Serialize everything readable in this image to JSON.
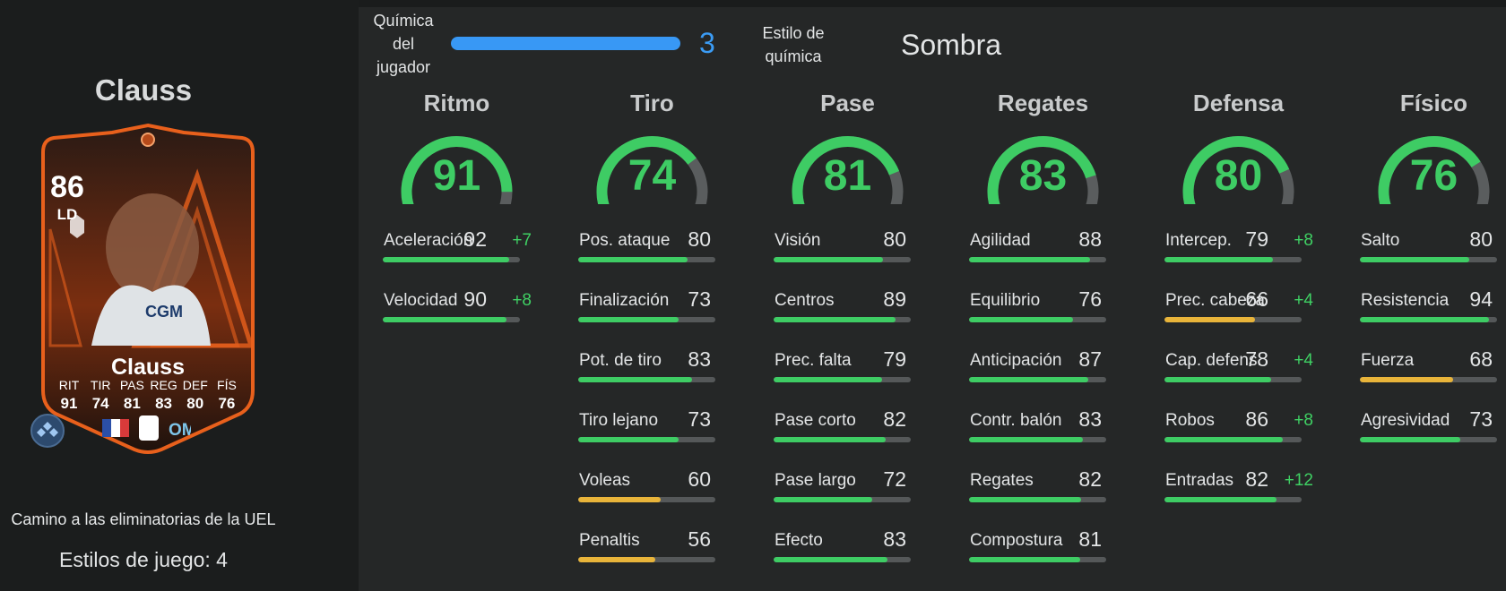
{
  "colors": {
    "bar_green": "#3ecc64",
    "bar_yellow": "#e8b43a",
    "bonus_green": "#3fd063",
    "chemistry_blue": "#3898f5",
    "card_orange": "#e8601c"
  },
  "player": {
    "name": "Clauss",
    "card": {
      "rating": "86",
      "position": "LD",
      "name": "Clauss",
      "stats": [
        {
          "label": "RIT",
          "value": "91"
        },
        {
          "label": "TIR",
          "value": "74"
        },
        {
          "label": "PAS",
          "value": "81"
        },
        {
          "label": "REG",
          "value": "83"
        },
        {
          "label": "DEF",
          "value": "80"
        },
        {
          "label": "FÍS",
          "value": "76"
        }
      ],
      "badges": {
        "playstyle": "playstyle-icon",
        "nation": "france-flag-icon",
        "league": "ligue1-logo-icon",
        "club": "marseille-crest-icon"
      }
    },
    "promo": "Camino a las eliminatorias de la UEL",
    "playstyles": "Estilos de juego: 4"
  },
  "chemistry": {
    "label_lines": [
      "Química",
      "del",
      "jugador"
    ],
    "value": "3",
    "fill": 1.0,
    "style_label_lines": [
      "Estilo de",
      "química"
    ],
    "style_value": "Sombra"
  },
  "categories": [
    {
      "title": "Ritmo",
      "rating": "91",
      "attributes": [
        {
          "name": "Aceleración",
          "value": "92",
          "bonus": "+7",
          "level": 92,
          "color": "green"
        },
        {
          "name": "Velocidad",
          "value": "90",
          "bonus": "+8",
          "level": 90,
          "color": "green"
        }
      ]
    },
    {
      "title": "Tiro",
      "rating": "74",
      "attributes": [
        {
          "name": "Pos. ataque",
          "value": "80",
          "bonus": "",
          "level": 80,
          "color": "green"
        },
        {
          "name": "Finalización",
          "value": "73",
          "bonus": "",
          "level": 73,
          "color": "green"
        },
        {
          "name": "Pot. de tiro",
          "value": "83",
          "bonus": "",
          "level": 83,
          "color": "green"
        },
        {
          "name": "Tiro lejano",
          "value": "73",
          "bonus": "",
          "level": 73,
          "color": "green"
        },
        {
          "name": "Voleas",
          "value": "60",
          "bonus": "",
          "level": 60,
          "color": "yellow"
        },
        {
          "name": "Penaltis",
          "value": "56",
          "bonus": "",
          "level": 56,
          "color": "yellow"
        }
      ]
    },
    {
      "title": "Pase",
      "rating": "81",
      "attributes": [
        {
          "name": "Visión",
          "value": "80",
          "bonus": "",
          "level": 80,
          "color": "green"
        },
        {
          "name": "Centros",
          "value": "89",
          "bonus": "",
          "level": 89,
          "color": "green"
        },
        {
          "name": "Prec. falta",
          "value": "79",
          "bonus": "",
          "level": 79,
          "color": "green"
        },
        {
          "name": "Pase corto",
          "value": "82",
          "bonus": "",
          "level": 82,
          "color": "green"
        },
        {
          "name": "Pase largo",
          "value": "72",
          "bonus": "",
          "level": 72,
          "color": "green"
        },
        {
          "name": "Efecto",
          "value": "83",
          "bonus": "",
          "level": 83,
          "color": "green"
        }
      ]
    },
    {
      "title": "Regates",
      "rating": "83",
      "attributes": [
        {
          "name": "Agilidad",
          "value": "88",
          "bonus": "",
          "level": 88,
          "color": "green"
        },
        {
          "name": "Equilibrio",
          "value": "76",
          "bonus": "",
          "level": 76,
          "color": "green"
        },
        {
          "name": "Anticipación",
          "value": "87",
          "bonus": "",
          "level": 87,
          "color": "green"
        },
        {
          "name": "Contr. balón",
          "value": "83",
          "bonus": "",
          "level": 83,
          "color": "green"
        },
        {
          "name": "Regates",
          "value": "82",
          "bonus": "",
          "level": 82,
          "color": "green"
        },
        {
          "name": "Compostura",
          "value": "81",
          "bonus": "",
          "level": 81,
          "color": "green"
        }
      ]
    },
    {
      "title": "Defensa",
      "rating": "80",
      "attributes": [
        {
          "name": "Intercep.",
          "value": "79",
          "bonus": "+8",
          "level": 79,
          "color": "green"
        },
        {
          "name": "Prec. cabeza",
          "value": "66",
          "bonus": "+4",
          "level": 66,
          "color": "yellow"
        },
        {
          "name": "Cap. defens.",
          "value": "78",
          "bonus": "+4",
          "level": 78,
          "color": "green"
        },
        {
          "name": "Robos",
          "value": "86",
          "bonus": "+8",
          "level": 86,
          "color": "green"
        },
        {
          "name": "Entradas",
          "value": "82",
          "bonus": "+12",
          "level": 82,
          "color": "green"
        }
      ]
    },
    {
      "title": "Físico",
      "rating": "76",
      "attributes": [
        {
          "name": "Salto",
          "value": "80",
          "bonus": "",
          "level": 80,
          "color": "green"
        },
        {
          "name": "Resistencia",
          "value": "94",
          "bonus": "",
          "level": 94,
          "color": "green"
        },
        {
          "name": "Fuerza",
          "value": "68",
          "bonus": "",
          "level": 68,
          "color": "yellow"
        },
        {
          "name": "Agresividad",
          "value": "73",
          "bonus": "",
          "level": 73,
          "color": "green"
        }
      ]
    }
  ]
}
